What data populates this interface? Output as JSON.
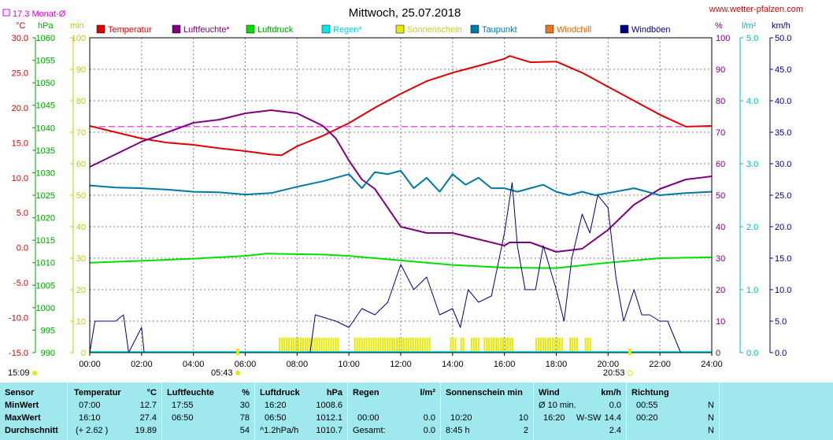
{
  "header": {
    "title": "Mittwoch, 25.07.2018",
    "website": "www.wetter-pfalzen.com",
    "monthly_avg": "17.3 Monat-Ø"
  },
  "axes_labels": {
    "temp_unit": "°C",
    "pressure_unit": "hPa",
    "min_unit": "min",
    "humidity_unit": "%",
    "rain_unit": "l/m²",
    "wind_unit": "km/h"
  },
  "time_labels": {
    "start": "15:09",
    "sunrise": "05:43",
    "sunset": "20:53"
  },
  "colors": {
    "temperatur": "#e00000",
    "luftfeuchte": "#800080",
    "luftdruck": "#00e000",
    "regen": "#00e8e8",
    "sonnenschein": "#e8e800",
    "taupunkt": "#0078a8",
    "windchill": "#e87820",
    "windboeen": "#000080",
    "monthly_avg": "#e000e0"
  },
  "chart_data": {
    "type": "line",
    "title": "Mittwoch, 25.07.2018",
    "x_ticks": [
      "00:00",
      "02:00",
      "04:00",
      "06:00",
      "08:00",
      "10:00",
      "12:00",
      "14:00",
      "16:00",
      "18:00",
      "20:00",
      "22:00",
      "24:00"
    ],
    "x_range_hours": [
      0,
      24
    ],
    "axes": {
      "temperature_c": {
        "range": [
          -15,
          30
        ],
        "ticks": [
          "30.0",
          "25.0",
          "20.0",
          "15.0",
          "10.0",
          "5.0",
          "0.0",
          "-5.0",
          "-10.0",
          "-15.0"
        ]
      },
      "pressure_hpa": {
        "range": [
          990,
          1060
        ],
        "ticks": [
          "1060",
          "1055",
          "1050",
          "1045",
          "1040",
          "1035",
          "1030",
          "1025",
          "1020",
          "1015",
          "1010",
          "1005",
          "1000",
          "995",
          "990"
        ]
      },
      "sunshine_min": {
        "range": [
          0,
          100
        ],
        "ticks": [
          "100",
          "90",
          "80",
          "70",
          "60",
          "50",
          "40",
          "30",
          "20",
          "10",
          "0"
        ]
      },
      "humidity_pct": {
        "range": [
          0,
          100
        ],
        "ticks": [
          "100",
          "90",
          "80",
          "70",
          "60",
          "50",
          "40",
          "30",
          "20",
          "10",
          "0"
        ]
      },
      "rain_lm2": {
        "range": [
          0,
          5
        ],
        "ticks": [
          "5.0",
          "4.0",
          "3.0",
          "2.0",
          "1.0",
          "0.0"
        ]
      },
      "wind_kmh": {
        "range": [
          0,
          50
        ],
        "ticks": [
          "50.0",
          "45.0",
          "40.0",
          "35.0",
          "30.0",
          "25.0",
          "20.0",
          "15.0",
          "10.0",
          "5.0",
          "0.0"
        ]
      }
    },
    "legend": [
      "Temperatur",
      "Luftfeuchte*",
      "Luftdruck",
      "Regen*",
      "Sonnenschein",
      "Taupunkt",
      "Windchill",
      "Windböen"
    ],
    "monthly_avg_temp_c": 17.3,
    "series": [
      {
        "name": "Temperatur",
        "axis": "temperature_c",
        "x": [
          0,
          1,
          2,
          3,
          4,
          5,
          6,
          7,
          7.4,
          8,
          9,
          10,
          11,
          12,
          13,
          14,
          15,
          16,
          16.2,
          17,
          18,
          19,
          20,
          21,
          22,
          23,
          24
        ],
        "y": [
          17.4,
          16.5,
          15.6,
          15.0,
          14.7,
          14.2,
          13.8,
          13.3,
          13.2,
          14.5,
          16.0,
          17.8,
          20.0,
          22.0,
          23.8,
          25.0,
          26.0,
          27.0,
          27.4,
          26.5,
          26.6,
          25.0,
          23.0,
          21.0,
          19.0,
          17.3,
          17.4
        ]
      },
      {
        "name": "Luftfeuchte*",
        "axis": "humidity_pct",
        "x": [
          0,
          1,
          2,
          3,
          4,
          5,
          6,
          7,
          8,
          9,
          9.5,
          10,
          10.5,
          11,
          12,
          13,
          14,
          15,
          16,
          16.2,
          17,
          18,
          19,
          20,
          21,
          22,
          23,
          24
        ],
        "y": [
          59,
          63,
          67,
          70,
          73,
          74,
          76,
          77,
          76,
          72,
          68,
          61,
          55,
          52,
          40,
          38,
          38,
          36,
          34,
          35,
          35,
          32,
          33,
          39,
          47,
          52,
          55,
          56
        ]
      },
      {
        "name": "Luftdruck",
        "axis": "pressure_hpa",
        "x": [
          0,
          2,
          4,
          6,
          6.8,
          8,
          9,
          10,
          12,
          14,
          16,
          18,
          20,
          22,
          24
        ],
        "y": [
          1010.0,
          1010.4,
          1010.9,
          1011.5,
          1012.0,
          1011.9,
          1011.8,
          1011.5,
          1010.5,
          1009.5,
          1008.9,
          1008.8,
          1010.0,
          1011.0,
          1011.2
        ]
      },
      {
        "name": "Taupunkt",
        "axis": "temperature_c",
        "x": [
          0,
          1,
          2,
          3,
          4,
          5,
          6,
          7,
          8,
          9,
          10,
          10.5,
          11,
          11.5,
          12,
          12.5,
          13,
          13.5,
          14,
          14.5,
          15,
          15.5,
          16,
          16.5,
          17,
          17.5,
          18,
          18.5,
          19,
          19.5,
          20,
          21,
          22,
          23,
          24
        ],
        "y": [
          8.9,
          8.6,
          8.5,
          8.3,
          8.0,
          7.9,
          7.6,
          7.8,
          8.7,
          9.5,
          10.5,
          8.5,
          10.8,
          10.5,
          11.0,
          8.5,
          10.0,
          8.0,
          10.5,
          9.0,
          10.0,
          8.5,
          8.5,
          8.0,
          8.5,
          9.0,
          8.0,
          7.5,
          8.0,
          7.5,
          7.8,
          8.5,
          7.5,
          7.8,
          8.0
        ]
      },
      {
        "name": "Windböen",
        "axis": "wind_kmh",
        "x": [
          0,
          0.2,
          1.0,
          1.3,
          1.5,
          2.0,
          2.1,
          8.5,
          8.7,
          9.5,
          10.0,
          10.5,
          11.0,
          11.5,
          12.0,
          12.5,
          13.0,
          13.5,
          14.0,
          14.3,
          14.6,
          15.0,
          15.5,
          16.0,
          16.3,
          16.5,
          16.8,
          17.2,
          17.5,
          18.0,
          18.3,
          18.6,
          19.0,
          19.3,
          19.6,
          20.0,
          20.3,
          20.6,
          21.0,
          21.3,
          21.6,
          22.0,
          22.3,
          22.8
        ],
        "y": [
          0,
          5,
          5,
          6,
          0,
          4,
          0,
          0,
          6,
          5,
          4,
          7,
          6,
          8,
          14,
          10,
          12,
          6,
          7,
          4,
          10,
          8,
          9,
          19,
          27,
          17,
          10,
          10,
          17,
          10,
          5,
          15,
          22,
          19,
          25,
          23,
          12,
          5,
          10,
          6,
          6,
          5,
          5,
          0
        ]
      }
    ],
    "sunshine_intervals_h": [
      [
        7.3,
        9.6
      ],
      [
        10.2,
        13.1
      ],
      [
        13.9,
        14.1
      ],
      [
        14.3,
        14.4
      ],
      [
        14.7,
        15.0
      ],
      [
        15.2,
        16.3
      ],
      [
        17.2,
        18.2
      ],
      [
        18.5,
        18.8
      ],
      [
        19.1,
        19.3
      ]
    ]
  },
  "table": {
    "columns": [
      {
        "header": "Sensor",
        "unit": ""
      },
      {
        "header": "Temperatur",
        "unit": "°C"
      },
      {
        "header": "Luftfeuchte",
        "unit": "%"
      },
      {
        "header": "Luftdruck",
        "unit": "hPa"
      },
      {
        "header": "Regen",
        "unit": "l/m²"
      },
      {
        "header": "Sonnenschein min",
        "unit": ""
      },
      {
        "header": "Wind",
        "unit": "km/h"
      },
      {
        "header": "Richtung",
        "unit": ""
      }
    ],
    "row_labels": [
      "MinWert",
      "MaxWert",
      "Durchschnitt"
    ],
    "temperatur": [
      [
        "07:00",
        "12.7"
      ],
      [
        "16:10",
        "27.4"
      ],
      [
        "(+ 2.62 )",
        "19.89"
      ]
    ],
    "luftfeuchte": [
      [
        "17:55",
        "30"
      ],
      [
        "06:50",
        "78"
      ],
      [
        "",
        "54"
      ]
    ],
    "luftdruck": [
      [
        "16:20",
        "1008.6"
      ],
      [
        "06:50",
        "1012.1"
      ],
      [
        "^1.2hPa/h",
        "1010.7"
      ]
    ],
    "regen": [
      [
        "",
        ""
      ],
      [
        "00:00",
        "0.0"
      ],
      [
        "Gesamt:",
        "0.0"
      ]
    ],
    "sonnenschein": [
      [
        "",
        ""
      ],
      [
        "10:20",
        "10"
      ],
      [
        "8:45 h",
        "2"
      ]
    ],
    "wind": [
      [
        "Ø 10 min.",
        "",
        "0.0"
      ],
      [
        "16:20",
        "W-SW",
        "14.4"
      ],
      [
        "",
        "",
        "2.4"
      ]
    ],
    "richtung": [
      [
        "00:55",
        "N"
      ],
      [
        "00:20",
        "N"
      ],
      [
        "",
        "N"
      ]
    ]
  }
}
